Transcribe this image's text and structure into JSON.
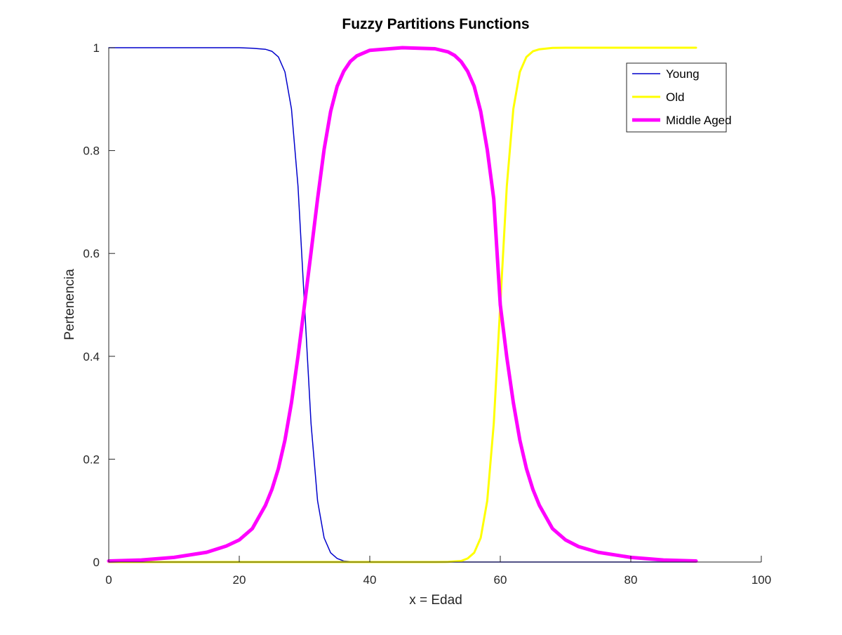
{
  "chart_data": {
    "type": "line",
    "title": "Fuzzy Partitions Functions",
    "xlabel": "x = Edad",
    "ylabel": "Pertenencia",
    "xlim": [
      0,
      100
    ],
    "ylim": [
      0,
      1
    ],
    "xticks": [
      0,
      20,
      40,
      60,
      80,
      100
    ],
    "yticks": [
      0,
      0.2,
      0.4,
      0.6,
      0.8,
      1
    ],
    "xtick_labels": [
      "0",
      "20",
      "40",
      "60",
      "80",
      "100"
    ],
    "ytick_labels": [
      "0",
      "0.2",
      "0.4",
      "0.6",
      "0.8",
      "1"
    ],
    "grid": false,
    "legend_position": "top-right",
    "series": [
      {
        "name": "Young",
        "color": "#0000cc",
        "line_width": "thin",
        "x": [
          0,
          10,
          20,
          22,
          24,
          25,
          26,
          27,
          28,
          29,
          30,
          31,
          32,
          33,
          34,
          35,
          36,
          37,
          38,
          40,
          50,
          60,
          70,
          80,
          90
        ],
        "y": [
          1,
          1,
          1,
          0.999,
          0.997,
          0.993,
          0.982,
          0.953,
          0.881,
          0.731,
          0.5,
          0.269,
          0.119,
          0.047,
          0.018,
          0.007,
          0.002,
          0.001,
          0.0003,
          0,
          0,
          0,
          0,
          0,
          0
        ]
      },
      {
        "name": "Old",
        "color": "#ffff00",
        "line_width": "medium",
        "x": [
          0,
          10,
          20,
          30,
          40,
          50,
          52,
          54,
          55,
          56,
          57,
          58,
          59,
          60,
          61,
          62,
          63,
          64,
          65,
          66,
          68,
          70,
          80,
          90
        ],
        "y": [
          0,
          0,
          0,
          0,
          0,
          0,
          0.0003,
          0.002,
          0.007,
          0.018,
          0.047,
          0.119,
          0.269,
          0.5,
          0.731,
          0.881,
          0.953,
          0.982,
          0.993,
          0.997,
          0.9997,
          1,
          1,
          1
        ]
      },
      {
        "name": "Middle Aged",
        "color": "#ff00ff",
        "line_width": "thick",
        "x": [
          0,
          5,
          10,
          15,
          18,
          20,
          22,
          24,
          25,
          26,
          27,
          28,
          29,
          30,
          31,
          32,
          33,
          34,
          35,
          36,
          37,
          38,
          40,
          45,
          50,
          52,
          53,
          54,
          55,
          56,
          57,
          58,
          59,
          60,
          61,
          62,
          63,
          64,
          65,
          66,
          68,
          70,
          72,
          75,
          80,
          85,
          90
        ],
        "y": [
          0.002,
          0.004,
          0.009,
          0.019,
          0.031,
          0.043,
          0.065,
          0.11,
          0.141,
          0.182,
          0.237,
          0.31,
          0.4,
          0.5,
          0.602,
          0.706,
          0.802,
          0.876,
          0.925,
          0.954,
          0.973,
          0.984,
          0.995,
          1,
          0.998,
          0.992,
          0.985,
          0.973,
          0.954,
          0.925,
          0.876,
          0.802,
          0.706,
          0.5,
          0.398,
          0.31,
          0.237,
          0.182,
          0.141,
          0.11,
          0.065,
          0.043,
          0.03,
          0.019,
          0.009,
          0.004,
          0.002
        ]
      }
    ]
  }
}
